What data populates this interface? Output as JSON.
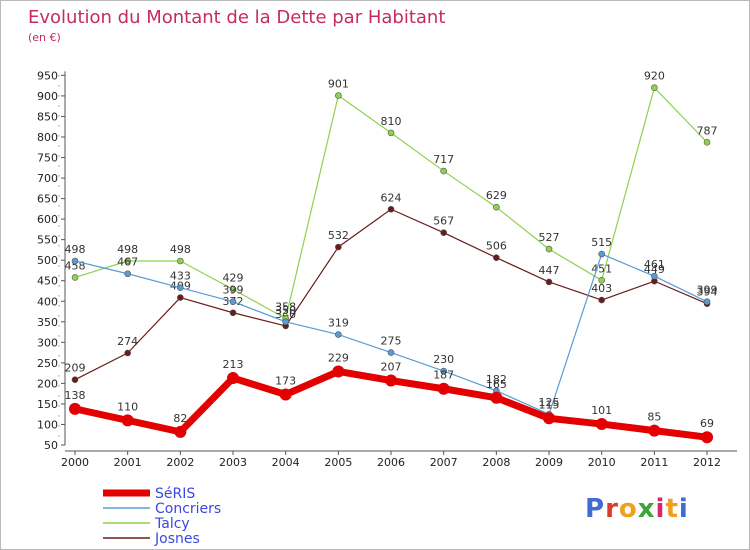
{
  "chart_data": {
    "type": "line",
    "title": "Evolution du Montant de la Dette par Habitant",
    "subtitle": "(en €)",
    "xlabel": "",
    "ylabel": "",
    "categories": [
      "2000",
      "2001",
      "2002",
      "2003",
      "2004",
      "2005",
      "2006",
      "2007",
      "2008",
      "2009",
      "2010",
      "2011",
      "2012"
    ],
    "ylim": [
      50,
      950
    ],
    "yticks": [
      50,
      100,
      150,
      200,
      250,
      300,
      350,
      400,
      450,
      500,
      550,
      600,
      650,
      700,
      750,
      800,
      850,
      900,
      950
    ],
    "grid": false,
    "legend_position": "bottom-left",
    "series": [
      {
        "name": "SéRIS",
        "color": "#e30000",
        "values": [
          138,
          110,
          82,
          213,
          173,
          229,
          207,
          187,
          165,
          115,
          101,
          85,
          69
        ]
      },
      {
        "name": "Concriers",
        "color": "#5b9bd5",
        "values": [
          498,
          467,
          433,
          399,
          350,
          319,
          275,
          230,
          182,
          125,
          515,
          461,
          399
        ]
      },
      {
        "name": "Talcy",
        "color": "#8fd14f",
        "values": [
          458,
          498,
          498,
          429,
          358,
          901,
          810,
          717,
          629,
          527,
          451,
          920,
          787
        ]
      },
      {
        "name": "Josnes",
        "color": "#6a1b1b",
        "values": [
          209,
          274,
          409,
          372,
          340,
          532,
          624,
          567,
          506,
          447,
          403,
          449,
          394
        ]
      }
    ]
  },
  "logo": {
    "text": "Proxiti",
    "letter_colors": [
      "#3f6bd4",
      "#e0392b",
      "#f0a020",
      "#3aa63a",
      "#d4286b",
      "#f0a020",
      "#3f6bd4"
    ]
  }
}
